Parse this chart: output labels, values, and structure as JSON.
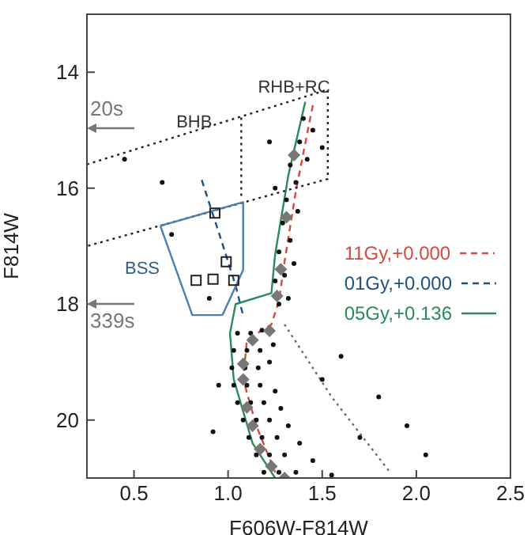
{
  "chart_data": {
    "type": "scatter",
    "xlabel": "F606W-F814W",
    "ylabel": "F814W",
    "xlim": [
      0.25,
      2.5
    ],
    "ylim": [
      21,
      13
    ],
    "xticks": [
      0.5,
      {
        "value": 1,
        "label": "1.0"
      },
      1.5,
      {
        "value": 2,
        "label": "2.0"
      },
      2.5
    ],
    "yticks": [
      14,
      16,
      18,
      20
    ],
    "grid": false,
    "legend": "center right",
    "series": [
      {
        "color": "#111111",
        "marker": "circle",
        "x": [
          1.05,
          1.12,
          1.18,
          1.03,
          1.1,
          1.17,
          1.24,
          1.02,
          1.09,
          1.16,
          1.22,
          1.03,
          1.1,
          1.17,
          1.25,
          1.05,
          1.12,
          1.19,
          1.28,
          1.08,
          1.15,
          1.22,
          1.32,
          1.11,
          1.18,
          1.26,
          1.38,
          1.15,
          1.22,
          1.3,
          1.45,
          1.19,
          1.27,
          1.36,
          1.55,
          1.27,
          1.32,
          1.25,
          1.3,
          1.35,
          1.27,
          1.33,
          1.29,
          1.37,
          1.31,
          1.25,
          1.36,
          1.33,
          1.42,
          1.38,
          1.45,
          1.4,
          1.5,
          1.22,
          0.45,
          0.65,
          0.7,
          0.9,
          1.6,
          1.8,
          2.05,
          1.95,
          0.95,
          0.92,
          1.7,
          1.5
        ],
        "values": [
          18.5,
          18.5,
          18.45,
          18.8,
          18.8,
          18.8,
          18.7,
          19.1,
          19.1,
          19.1,
          19.0,
          19.4,
          19.4,
          19.4,
          19.5,
          19.7,
          19.7,
          19.7,
          19.8,
          20.0,
          20.0,
          20.0,
          20.1,
          20.3,
          20.3,
          20.3,
          20.4,
          20.6,
          20.6,
          20.6,
          20.7,
          20.9,
          20.9,
          20.9,
          20.95,
          18.0,
          17.9,
          17.6,
          17.5,
          17.3,
          17.1,
          16.9,
          16.6,
          16.4,
          16.2,
          16.0,
          15.9,
          15.6,
          15.5,
          15.2,
          15.0,
          14.8,
          15.3,
          15.2,
          15.5,
          15.9,
          16.8,
          17.9,
          18.9,
          19.6,
          20.6,
          20.1,
          19.4,
          20.2,
          20.3,
          19.3
        ]
      },
      {
        "color": "#777777",
        "marker": "diamond",
        "x": [
          1.35,
          1.31,
          1.28,
          1.26,
          1.22,
          1.13,
          1.08,
          1.08,
          1.1,
          1.13,
          1.17,
          1.23,
          1.3
        ],
        "values": [
          15.43,
          16.5,
          17.4,
          17.86,
          18.46,
          18.62,
          19.03,
          19.3,
          19.78,
          20.1,
          20.5,
          20.8,
          21.0
        ]
      },
      {
        "color": "#222222",
        "marker": "square",
        "x": [
          0.93,
          0.99,
          0.83,
          0.92,
          1.03
        ],
        "values": [
          16.43,
          17.27,
          17.59,
          17.57,
          17.59
        ]
      },
      {
        "type": "line",
        "name": "11Gy,+0.000",
        "color": "#d9473c",
        "line_style": "dashed",
        "x": [
          1.45,
          1.36,
          1.3,
          1.27,
          1.23,
          1.1,
          1.08,
          1.15,
          1.25
        ],
        "values": [
          14.57,
          16.05,
          17.27,
          17.95,
          18.35,
          18.62,
          19.3,
          20.1,
          20.9
        ]
      },
      {
        "type": "line",
        "name": "01Gy,+0.000",
        "color": "#1f4f86",
        "line_style": "dashed",
        "x": [
          0.86,
          0.96,
          1.04,
          1.08
        ],
        "values": [
          15.86,
          16.86,
          17.68,
          18.2
        ]
      },
      {
        "type": "line",
        "name": "05Gy,+0.136",
        "color": "#2a8a5a",
        "line_style": "solid",
        "x": [
          1.41,
          1.32,
          1.25,
          1.23,
          1.04,
          1.01,
          1.03,
          1.13,
          1.25
        ],
        "values": [
          14.51,
          15.78,
          17.14,
          17.81,
          18.0,
          18.5,
          19.3,
          20.4,
          21.0
        ]
      },
      {
        "type": "line",
        "color": "#5a7080",
        "line_style": "dotted",
        "x": [
          1.3,
          1.55,
          1.86
        ],
        "values": [
          18.35,
          19.6,
          20.9
        ]
      },
      {
        "type": "line",
        "color": "#222222",
        "line_style": "dotted",
        "x": [
          0.25,
          1.53,
          1.53,
          0.25
        ],
        "values": [
          15.59,
          14.3,
          15.84,
          17.0
        ]
      },
      {
        "type": "line",
        "color": "#222222",
        "line_style": "dotted",
        "x": [
          1.07,
          1.07
        ],
        "values": [
          14.78,
          16.2
        ]
      },
      {
        "type": "line",
        "color": "#4a7fae",
        "line_style": "solid",
        "x": [
          0.64,
          1.08,
          1.08,
          0.97
        ],
        "values": [
          16.65,
          16.24,
          17.41,
          18.19
        ]
      },
      {
        "type": "line",
        "color": "#4a7fae",
        "line_style": "solid",
        "x": [
          0.97,
          0.81,
          0.64
        ],
        "values": [
          18.19,
          18.19,
          16.65
        ]
      }
    ],
    "annotations": [
      "20s",
      "339s",
      {
        "text": "BHB",
        "x": 0.82,
        "y": 14.95
      },
      {
        "text": "RHB+RC",
        "x": 1.35,
        "y": 14.35
      },
      "BSS"
    ]
  }
}
